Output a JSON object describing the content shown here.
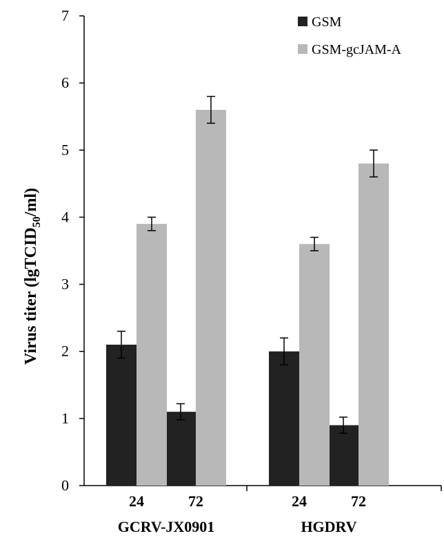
{
  "chart_data": {
    "type": "bar",
    "ylabel": "Virus titer (lgTCID",
    "ylabel_sub": "50",
    "ylabel_tail": "/ml)",
    "ylim": [
      0,
      7
    ],
    "yticks": [
      "0",
      "1",
      "2",
      "3",
      "4",
      "5",
      "6",
      "7"
    ],
    "grid": false,
    "legend_position": "top-right",
    "groups": [
      {
        "name": "GCRV-JX0901",
        "categories": [
          "24",
          "72"
        ]
      },
      {
        "name": "HGDRV",
        "categories": [
          "24",
          "72"
        ]
      }
    ],
    "series": [
      {
        "name": "GSM",
        "color": "#222222",
        "values": [
          2.1,
          1.1,
          2.0,
          0.9
        ],
        "errors": [
          0.2,
          0.12,
          0.2,
          0.12
        ]
      },
      {
        "name": "GSM-gcJAM-A",
        "color": "#b8b8b8",
        "values": [
          3.9,
          5.6,
          3.6,
          4.8
        ],
        "errors": [
          0.1,
          0.2,
          0.1,
          0.2
        ]
      }
    ]
  }
}
